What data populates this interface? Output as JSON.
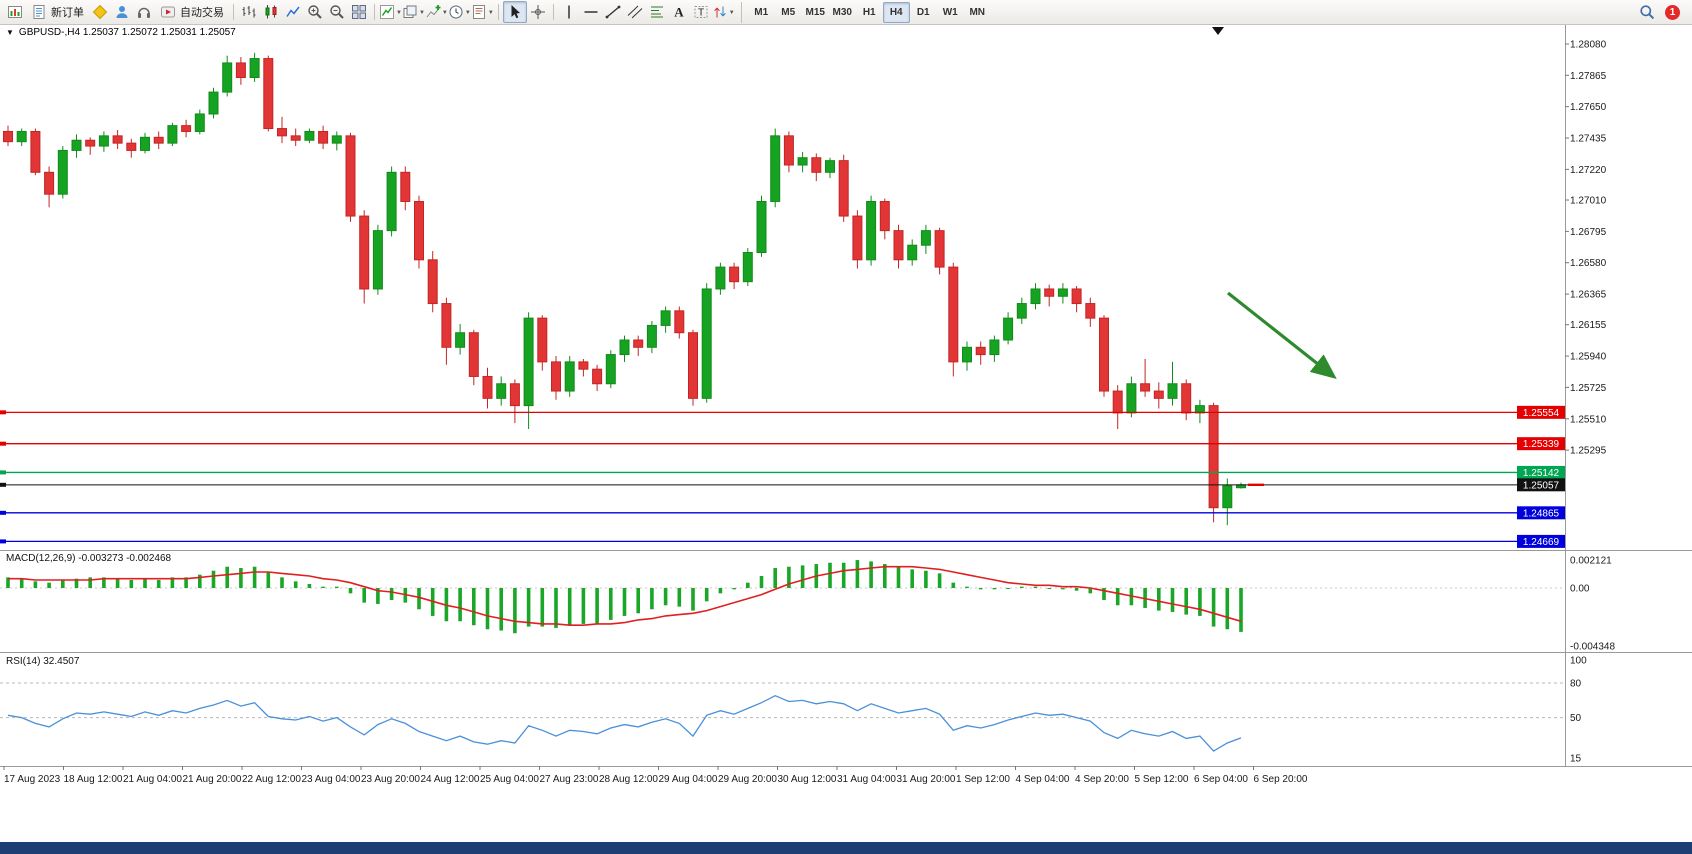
{
  "colors": {
    "up": "#17a322",
    "down": "#e23636",
    "wick_up": "#128a1b",
    "wick_down": "#c32525",
    "macd_hist": "#1aa626",
    "macd_signal": "#e02020",
    "rsi_line": "#4a90d9",
    "line_red": "#e40000",
    "line_green": "#00a651",
    "line_black": "#111111",
    "line_blue": "#0000dd",
    "arrow": "#2d8a2d",
    "axis_text": "#1a1a1a",
    "separator": "#9a9a9a"
  },
  "toolbar": {
    "badge": "1",
    "active_timeframe": "H4",
    "timeframes": [
      "M1",
      "M5",
      "M15",
      "M30",
      "H1",
      "H4",
      "D1",
      "W1",
      "MN"
    ],
    "groups": [
      {
        "name": "files",
        "items": [
          {
            "icon": "new-chart",
            "label": ""
          },
          {
            "icon": "new-order",
            "label": "新订单"
          },
          {
            "icon": "mql5",
            "label": ""
          },
          {
            "icon": "profile",
            "label": ""
          },
          {
            "icon": "market",
            "label": ""
          },
          {
            "icon": "auto-trading",
            "label": "自动交易"
          }
        ]
      },
      {
        "name": "chart-view",
        "items": [
          {
            "icon": "bar-chart"
          },
          {
            "icon": "candle-chart"
          },
          {
            "icon": "line-chart"
          },
          {
            "icon": "zoom-in"
          },
          {
            "icon": "zoom-out"
          },
          {
            "icon": "tile-windows"
          }
        ]
      },
      {
        "name": "chart-tools",
        "items": [
          {
            "icon": "indicators",
            "caret": true
          },
          {
            "icon": "profiles",
            "caret": true
          },
          {
            "icon": "add-indicator",
            "caret": true
          },
          {
            "icon": "periods",
            "caret": true
          },
          {
            "icon": "templates",
            "caret": true
          }
        ]
      },
      {
        "name": "cursor",
        "items": [
          {
            "icon": "pointer",
            "active": true
          },
          {
            "icon": "crosshair"
          }
        ]
      },
      {
        "name": "objects",
        "items": [
          {
            "icon": "vline"
          },
          {
            "icon": "hline"
          },
          {
            "icon": "trendline"
          },
          {
            "icon": "channel"
          },
          {
            "icon": "fibonacci"
          },
          {
            "icon": "text-a"
          },
          {
            "icon": "label-t"
          },
          {
            "icon": "arrows",
            "caret": true
          }
        ]
      }
    ]
  },
  "chart": {
    "symbol_line": "GBPUSD-,H4 1.25037 1.25072 1.25031 1.25057"
  },
  "chart_data": {
    "type": "candlestick",
    "symbol": "GBPUSD-",
    "timeframe": "H4",
    "ohlc_display": {
      "open": "1.25037",
      "high": "1.25072",
      "low": "1.25031",
      "close": "1.25057"
    },
    "price_range": [
      1.2461,
      1.28217
    ],
    "price_axis_labels": [
      "1.28080",
      "1.27865",
      "1.27650",
      "1.27435",
      "1.27220",
      "1.27010",
      "1.26795",
      "1.26580",
      "1.26365",
      "1.26155",
      "1.25940",
      "1.25725",
      "1.25510",
      "1.25295"
    ],
    "time_axis_labels": [
      "17 Aug 2023",
      "18 Aug 12:00",
      "21 Aug 04:00",
      "21 Aug 20:00",
      "22 Aug 12:00",
      "23 Aug 04:00",
      "23 Aug 20:00",
      "24 Aug 12:00",
      "25 Aug 04:00",
      "27 Aug 23:00",
      "28 Aug 12:00",
      "29 Aug 04:00",
      "29 Aug 20:00",
      "30 Aug 12:00",
      "31 Aug 04:00",
      "31 Aug 20:00",
      "1 Sep 12:00",
      "4 Sep 04:00",
      "4 Sep 20:00",
      "5 Sep 12:00",
      "6 Sep 04:00",
      "6 Sep 20:00"
    ],
    "horizontal_lines": [
      {
        "price": 1.25554,
        "label": "1.25554",
        "color": "#e40000"
      },
      {
        "price": 1.25339,
        "label": "1.25339",
        "color": "#e40000"
      },
      {
        "price": 1.25142,
        "label": "1.25142",
        "color": "#00a651"
      },
      {
        "price": 1.25057,
        "label": "1.25057",
        "color": "#111111",
        "current": true
      },
      {
        "price": 1.24865,
        "label": "1.24865",
        "color": "#0000dd"
      },
      {
        "price": 1.24669,
        "label": "1.24669",
        "color": "#0000dd"
      }
    ],
    "annotation_arrow": {
      "direction": "down-right",
      "color": "#2d8a2d"
    },
    "candles": [
      [
        1.2748,
        1.2752,
        1.2738,
        1.2741
      ],
      [
        1.2741,
        1.275,
        1.2738,
        1.2748
      ],
      [
        1.2748,
        1.275,
        1.2718,
        1.272
      ],
      [
        1.272,
        1.2724,
        1.2696,
        1.2705
      ],
      [
        1.2705,
        1.2738,
        1.2702,
        1.2735
      ],
      [
        1.2735,
        1.2746,
        1.273,
        1.2742
      ],
      [
        1.2742,
        1.2744,
        1.2732,
        1.2738
      ],
      [
        1.2738,
        1.2748,
        1.2734,
        1.2745
      ],
      [
        1.2745,
        1.2749,
        1.2736,
        1.274
      ],
      [
        1.274,
        1.2743,
        1.273,
        1.2735
      ],
      [
        1.2735,
        1.2747,
        1.2733,
        1.2744
      ],
      [
        1.2744,
        1.2748,
        1.2736,
        1.274
      ],
      [
        1.274,
        1.2754,
        1.2738,
        1.2752
      ],
      [
        1.2752,
        1.2756,
        1.2744,
        1.2748
      ],
      [
        1.2748,
        1.2763,
        1.2746,
        1.276
      ],
      [
        1.276,
        1.2778,
        1.2757,
        1.2775
      ],
      [
        1.2775,
        1.28,
        1.2772,
        1.2795
      ],
      [
        1.2795,
        1.2799,
        1.278,
        1.2785
      ],
      [
        1.2785,
        1.2802,
        1.2782,
        1.2798
      ],
      [
        1.2798,
        1.28,
        1.2748,
        1.275
      ],
      [
        1.275,
        1.2758,
        1.274,
        1.2745
      ],
      [
        1.2745,
        1.275,
        1.2738,
        1.2742
      ],
      [
        1.2742,
        1.275,
        1.274,
        1.2748
      ],
      [
        1.2748,
        1.2752,
        1.2736,
        1.274
      ],
      [
        1.274,
        1.2748,
        1.2735,
        1.2745
      ],
      [
        1.2745,
        1.2747,
        1.2686,
        1.269
      ],
      [
        1.269,
        1.2694,
        1.263,
        1.264
      ],
      [
        1.264,
        1.2684,
        1.2636,
        1.268
      ],
      [
        1.268,
        1.2724,
        1.2676,
        1.272
      ],
      [
        1.272,
        1.2724,
        1.2694,
        1.27
      ],
      [
        1.27,
        1.2704,
        1.2654,
        1.266
      ],
      [
        1.266,
        1.2666,
        1.2624,
        1.263
      ],
      [
        1.263,
        1.2634,
        1.2588,
        1.26
      ],
      [
        1.26,
        1.2616,
        1.2595,
        1.261
      ],
      [
        1.261,
        1.2612,
        1.2574,
        1.258
      ],
      [
        1.258,
        1.2586,
        1.2558,
        1.2565
      ],
      [
        1.2565,
        1.258,
        1.256,
        1.2575
      ],
      [
        1.2575,
        1.2578,
        1.2548,
        1.256
      ],
      [
        1.256,
        1.2624,
        1.2544,
        1.262
      ],
      [
        1.262,
        1.2622,
        1.2584,
        1.259
      ],
      [
        1.259,
        1.2594,
        1.2564,
        1.257
      ],
      [
        1.257,
        1.2594,
        1.2566,
        1.259
      ],
      [
        1.259,
        1.2592,
        1.258,
        1.2585
      ],
      [
        1.2585,
        1.2588,
        1.257,
        1.2575
      ],
      [
        1.2575,
        1.2598,
        1.2572,
        1.2595
      ],
      [
        1.2595,
        1.2608,
        1.259,
        1.2605
      ],
      [
        1.2605,
        1.2608,
        1.2594,
        1.26
      ],
      [
        1.26,
        1.2618,
        1.2596,
        1.2615
      ],
      [
        1.2615,
        1.2628,
        1.261,
        1.2625
      ],
      [
        1.2625,
        1.2628,
        1.2606,
        1.261
      ],
      [
        1.261,
        1.2612,
        1.256,
        1.2565
      ],
      [
        1.2565,
        1.2644,
        1.2562,
        1.264
      ],
      [
        1.264,
        1.2658,
        1.2636,
        1.2655
      ],
      [
        1.2655,
        1.2658,
        1.264,
        1.2645
      ],
      [
        1.2645,
        1.2668,
        1.2642,
        1.2665
      ],
      [
        1.2665,
        1.2704,
        1.2662,
        1.27
      ],
      [
        1.27,
        1.275,
        1.2696,
        1.2745
      ],
      [
        1.2745,
        1.2748,
        1.272,
        1.2725
      ],
      [
        1.2725,
        1.2734,
        1.272,
        1.273
      ],
      [
        1.273,
        1.2733,
        1.2714,
        1.272
      ],
      [
        1.272,
        1.273,
        1.2716,
        1.2728
      ],
      [
        1.2728,
        1.2732,
        1.2686,
        1.269
      ],
      [
        1.269,
        1.2694,
        1.2654,
        1.266
      ],
      [
        1.266,
        1.2704,
        1.2656,
        1.27
      ],
      [
        1.27,
        1.2702,
        1.2674,
        1.268
      ],
      [
        1.268,
        1.2684,
        1.2654,
        1.266
      ],
      [
        1.266,
        1.2674,
        1.2656,
        1.267
      ],
      [
        1.267,
        1.2684,
        1.2664,
        1.268
      ],
      [
        1.268,
        1.2682,
        1.265,
        1.2655
      ],
      [
        1.2655,
        1.2658,
        1.258,
        1.259
      ],
      [
        1.259,
        1.2604,
        1.2584,
        1.26
      ],
      [
        1.26,
        1.2604,
        1.2588,
        1.2595
      ],
      [
        1.2595,
        1.2608,
        1.259,
        1.2605
      ],
      [
        1.2605,
        1.2624,
        1.2602,
        1.262
      ],
      [
        1.262,
        1.2634,
        1.2616,
        1.263
      ],
      [
        1.263,
        1.2644,
        1.2626,
        1.264
      ],
      [
        1.264,
        1.2643,
        1.2628,
        1.2635
      ],
      [
        1.2635,
        1.2644,
        1.263,
        1.264
      ],
      [
        1.264,
        1.2642,
        1.2624,
        1.263
      ],
      [
        1.263,
        1.2634,
        1.2614,
        1.262
      ],
      [
        1.262,
        1.2622,
        1.2566,
        1.257
      ],
      [
        1.257,
        1.2574,
        1.2544,
        1.2555
      ],
      [
        1.2555,
        1.258,
        1.2552,
        1.2575
      ],
      [
        1.2575,
        1.2592,
        1.2566,
        1.257
      ],
      [
        1.257,
        1.2576,
        1.2558,
        1.2565
      ],
      [
        1.2565,
        1.259,
        1.256,
        1.2575
      ],
      [
        1.2575,
        1.2578,
        1.255,
        1.2555
      ],
      [
        1.2555,
        1.2564,
        1.2548,
        1.256
      ],
      [
        1.256,
        1.2562,
        1.248,
        1.249
      ],
      [
        1.249,
        1.251,
        1.2478,
        1.2505
      ],
      [
        1.25037,
        1.25072,
        1.25031,
        1.25057
      ]
    ],
    "macd": {
      "label": "MACD(12,26,9) -0.003273 -0.002468",
      "value_main": "-0.003273",
      "value_signal": "-0.002468",
      "axis_labels": [
        "0.002121",
        "0.00",
        "-0.004348"
      ],
      "range": [
        -0.004348,
        0.002121
      ],
      "histogram": [
        0.0008,
        0.0007,
        0.0005,
        0.0004,
        0.0006,
        0.0007,
        0.0008,
        0.0008,
        0.0007,
        0.0006,
        0.0007,
        0.0006,
        0.0008,
        0.0008,
        0.001,
        0.0013,
        0.0016,
        0.0015,
        0.0016,
        0.0012,
        0.0008,
        0.0005,
        0.0003,
        0.0001,
        0.0001,
        -0.0004,
        -0.0011,
        -0.0012,
        -0.0009,
        -0.0011,
        -0.0016,
        -0.0021,
        -0.0025,
        -0.0025,
        -0.0028,
        -0.0031,
        -0.0032,
        -0.0034,
        -0.0029,
        -0.0029,
        -0.003,
        -0.0028,
        -0.0027,
        -0.0027,
        -0.0024,
        -0.0021,
        -0.0019,
        -0.0016,
        -0.0013,
        -0.0014,
        -0.0017,
        -0.001,
        -0.0004,
        -0.0001,
        0.0004,
        0.0009,
        0.0015,
        0.0016,
        0.0017,
        0.0018,
        0.0019,
        0.0019,
        0.0021,
        0.002,
        0.0018,
        0.0016,
        0.0014,
        0.0013,
        0.0011,
        0.0004,
        0.0001,
        -0.0001,
        -0.0001,
        0.0,
        0.0001,
        0.0001,
        0.0,
        -0.0001,
        -0.0002,
        -0.0004,
        -0.0009,
        -0.0013,
        -0.0013,
        -0.0015,
        -0.0017,
        -0.0018,
        -0.002,
        -0.0021,
        -0.0029,
        -0.0031,
        -0.0033
      ],
      "signal": [
        0.0007,
        0.0007,
        0.0006,
        0.0006,
        0.0006,
        0.0006,
        0.0006,
        0.0007,
        0.0007,
        0.0007,
        0.0007,
        0.0007,
        0.0007,
        0.0007,
        0.0008,
        0.0009,
        0.001,
        0.0011,
        0.0012,
        0.0012,
        0.0011,
        0.001,
        0.0009,
        0.0007,
        0.0006,
        0.0004,
        0.0001,
        -0.0002,
        -0.0003,
        -0.0005,
        -0.0007,
        -0.001,
        -0.0013,
        -0.0015,
        -0.0018,
        -0.0021,
        -0.0023,
        -0.0025,
        -0.0026,
        -0.0027,
        -0.0027,
        -0.0028,
        -0.0028,
        -0.0027,
        -0.0027,
        -0.0026,
        -0.0024,
        -0.0023,
        -0.0021,
        -0.002,
        -0.0019,
        -0.0017,
        -0.0014,
        -0.0011,
        -0.0008,
        -0.0005,
        -0.0001,
        0.0003,
        0.0006,
        0.0009,
        0.0011,
        0.0013,
        0.0014,
        0.0015,
        0.0016,
        0.0016,
        0.0016,
        0.0015,
        0.0014,
        0.0012,
        0.001,
        0.0008,
        0.0006,
        0.0004,
        0.0003,
        0.0002,
        0.0002,
        0.0001,
        0.0001,
        0.0,
        -0.0002,
        -0.0004,
        -0.0006,
        -0.0008,
        -0.001,
        -0.0012,
        -0.0014,
        -0.0016,
        -0.0019,
        -0.0022,
        -0.0025
      ]
    },
    "rsi": {
      "label": "RSI(14) 32.4507",
      "value": "32.4507",
      "axis_labels": [
        "100",
        "80",
        "50",
        "15"
      ],
      "levels": [
        80,
        50
      ],
      "values": [
        52,
        50,
        45,
        42,
        49,
        54,
        53,
        55,
        53,
        51,
        55,
        52,
        56,
        54,
        58,
        61,
        65,
        60,
        63,
        51,
        49,
        48,
        51,
        47,
        50,
        42,
        35,
        44,
        49,
        45,
        38,
        34,
        30,
        34,
        29,
        27,
        30,
        28,
        43,
        39,
        34,
        39,
        38,
        36,
        41,
        44,
        42,
        46,
        49,
        45,
        34,
        52,
        56,
        53,
        58,
        63,
        69,
        64,
        65,
        62,
        64,
        62,
        56,
        62,
        58,
        54,
        56,
        58,
        53,
        39,
        43,
        41,
        44,
        48,
        51,
        54,
        52,
        53,
        50,
        47,
        37,
        32,
        39,
        36,
        34,
        38,
        32,
        34,
        21,
        28,
        32.45
      ]
    }
  }
}
